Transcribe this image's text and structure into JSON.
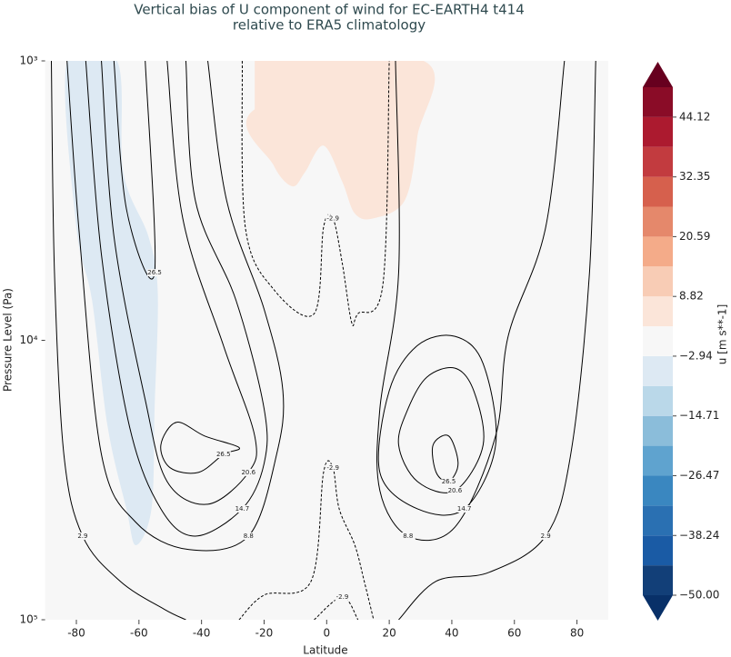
{
  "chart_data": {
    "type": "contour",
    "title": [
      "Vertical bias of U component of wind for EC-EARTH4 t414",
      "relative to ERA5 climatology"
    ],
    "x_label": "Latitude",
    "y_label": "Pressure Level (Pa)",
    "xlim": [
      -90,
      90
    ],
    "xticks": [
      -80,
      -60,
      -40,
      -20,
      0,
      20,
      40,
      60,
      80
    ],
    "ylim": [
      100000,
      1000
    ],
    "yscale": "log",
    "yticks": [
      {
        "value": 1000,
        "label": "10³"
      },
      {
        "value": 10000,
        "label": "10⁴"
      },
      {
        "value": 100000,
        "label": "10⁵"
      }
    ],
    "colorbar": {
      "label": "u [m s**-1]",
      "bounds": [
        -50,
        -44.12,
        -38.24,
        -32.35,
        -26.47,
        -20.59,
        -14.71,
        -8.82,
        -2.94,
        2.94,
        8.82,
        14.71,
        20.59,
        26.47,
        32.35,
        38.24,
        44.12,
        50
      ],
      "colors": [
        "#123f78",
        "#1a5ba5",
        "#2a70b2",
        "#3a87c0",
        "#5fa3cf",
        "#8bbdda",
        "#bad8e9",
        "#dde9f3",
        "#f7f7f7",
        "#fbe5d9",
        "#f8ccb5",
        "#f4ab89",
        "#e5886b",
        "#d6604d",
        "#c23b3f",
        "#ac1a2f",
        "#8a0c27"
      ],
      "under_color": "#083068",
      "over_color": "#67001f",
      "ticks": [
        {
          "value": 44.12,
          "label": "44.12"
        },
        {
          "value": 32.35,
          "label": "32.35"
        },
        {
          "value": 20.59,
          "label": "20.59"
        },
        {
          "value": 8.82,
          "label": "8.82"
        },
        {
          "value": -2.94,
          "label": "−2.94"
        },
        {
          "value": -14.71,
          "label": "−14.71"
        },
        {
          "value": -26.47,
          "label": "−26.47"
        },
        {
          "value": -38.24,
          "label": "−38.24"
        },
        {
          "value": -50,
          "label": "−50.00"
        }
      ]
    },
    "filled_regions": [
      {
        "range": [
          -8.82,
          -2.94
        ],
        "points": [
          [
            -83,
            1000
          ],
          [
            -67,
            1000
          ],
          [
            -65,
            2510
          ],
          [
            -57,
            4240
          ],
          [
            -54,
            6660
          ],
          [
            -55,
            17580
          ],
          [
            -56,
            40100
          ],
          [
            -61,
            54100
          ],
          [
            -64,
            40100
          ],
          [
            -70,
            20400
          ],
          [
            -75,
            7180
          ],
          [
            -80,
            3940
          ],
          [
            -83,
            1000
          ]
        ]
      },
      {
        "range": [
          2.94,
          8.82
        ],
        "points": [
          [
            -23,
            1000
          ],
          [
            31,
            1000
          ],
          [
            29,
            1860
          ],
          [
            25,
            3150
          ],
          [
            15,
            3660
          ],
          [
            9,
            3520
          ],
          [
            5,
            2710
          ],
          [
            -1,
            2010
          ],
          [
            -7,
            2510
          ],
          [
            -11,
            2810
          ],
          [
            -17,
            2360
          ],
          [
            -23,
            1490
          ]
        ]
      }
    ],
    "contours": [
      {
        "level": 2.9,
        "points": [
          [
            -88,
            1000
          ],
          [
            -87,
            5730
          ],
          [
            -84,
            25600
          ],
          [
            -78,
            50200
          ],
          [
            -66,
            72800
          ],
          [
            -52,
            91600
          ],
          [
            -45,
            100000
          ]
        ]
      },
      {
        "level": 8.8,
        "points": [
          [
            -83,
            1000
          ],
          [
            -79,
            4240
          ],
          [
            -72,
            25600
          ],
          [
            -61,
            44800
          ],
          [
            -44,
            56100
          ],
          [
            -25,
            50200
          ],
          [
            -16,
            25600
          ],
          [
            -14,
            15150
          ],
          [
            -20,
            7740
          ],
          [
            -32,
            3150
          ],
          [
            -38,
            1000
          ]
        ]
      },
      {
        "level": 14.7,
        "points": [
          [
            -77,
            1000
          ],
          [
            -72,
            4930
          ],
          [
            -63,
            20400
          ],
          [
            -53,
            40100
          ],
          [
            -42,
            50200
          ],
          [
            -27,
            40100
          ],
          [
            -20,
            27600
          ],
          [
            -20,
            17580
          ],
          [
            -29,
            7180
          ],
          [
            -42,
            3150
          ],
          [
            -45,
            1000
          ]
        ]
      },
      {
        "level": 20.6,
        "points": [
          [
            -72,
            1000
          ],
          [
            -68,
            4240
          ],
          [
            -58,
            16320
          ],
          [
            -51,
            32000
          ],
          [
            -38,
            38600
          ],
          [
            -25,
            29700
          ],
          [
            -23,
            22000
          ],
          [
            -33,
            10440
          ],
          [
            -46,
            3660
          ],
          [
            -51,
            1000
          ]
        ]
      },
      {
        "level": 26.5,
        "points": [
          [
            -68,
            1000
          ],
          [
            -64,
            3390
          ],
          [
            -55,
            5730
          ],
          [
            -58,
            1000
          ]
        ]
      },
      {
        "level": 26.5,
        "points": [
          [
            -53,
            23700
          ],
          [
            -48,
            19650
          ],
          [
            -39,
            22000
          ],
          [
            -28,
            24200
          ],
          [
            -33,
            25600
          ],
          [
            -41,
            29700
          ],
          [
            -50,
            28600
          ],
          [
            -53,
            23700
          ]
        ]
      },
      {
        "level": 2.9,
        "points": [
          [
            86,
            1000
          ],
          [
            84,
            5730
          ],
          [
            78,
            25600
          ],
          [
            70,
            50200
          ],
          [
            52,
            67600
          ],
          [
            35,
            72800
          ],
          [
            23,
            100000
          ]
        ]
      },
      {
        "level": 8.8,
        "points": [
          [
            76,
            1000
          ],
          [
            70,
            3940
          ],
          [
            58,
            9680
          ],
          [
            54,
            22000
          ],
          [
            41,
            46600
          ],
          [
            26,
            50200
          ],
          [
            17,
            34500
          ],
          [
            17,
            17580
          ],
          [
            23,
            5730
          ],
          [
            22,
            1000
          ]
        ]
      },
      {
        "level": 14.7,
        "points": [
          [
            29,
            10440
          ],
          [
            41,
            9680
          ],
          [
            50,
            12120
          ],
          [
            54,
            23700
          ],
          [
            44,
            40100
          ],
          [
            29,
            40100
          ],
          [
            17,
            29700
          ],
          [
            20,
            15150
          ],
          [
            29,
            10440
          ]
        ]
      },
      {
        "level": 20.6,
        "points": [
          [
            32,
            13550
          ],
          [
            41,
            12580
          ],
          [
            47,
            15150
          ],
          [
            50,
            23700
          ],
          [
            41,
            34500
          ],
          [
            29,
            32000
          ],
          [
            23,
            23700
          ],
          [
            26,
            17580
          ],
          [
            32,
            13550
          ]
        ]
      },
      {
        "level": 26.5,
        "points": [
          [
            34,
            23700
          ],
          [
            39,
            22000
          ],
          [
            42,
            27600
          ],
          [
            39,
            32000
          ],
          [
            35,
            29700
          ],
          [
            34,
            23700
          ]
        ]
      },
      {
        "level": -2.9,
        "points": [
          [
            -27,
            1000
          ],
          [
            -26,
            3940
          ],
          [
            -17,
            6560
          ],
          [
            -4,
            8030
          ],
          [
            -1,
            3940
          ],
          [
            2,
            3660
          ],
          [
            5,
            5310
          ],
          [
            8,
            8650
          ],
          [
            10,
            8030
          ],
          [
            18,
            6270
          ],
          [
            20,
            1000
          ]
        ]
      },
      {
        "level": -2.9,
        "points": [
          [
            -28,
            100000
          ],
          [
            -20,
            81600
          ],
          [
            -5,
            72800
          ],
          [
            -1,
            29700
          ],
          [
            2,
            28600
          ],
          [
            4,
            40100
          ],
          [
            9,
            54100
          ],
          [
            12,
            72800
          ],
          [
            15,
            100000
          ]
        ]
      },
      {
        "level": -2.9,
        "points": [
          [
            -4,
            100000
          ],
          [
            5,
            82800
          ],
          [
            10,
            100000
          ]
        ]
      }
    ]
  }
}
